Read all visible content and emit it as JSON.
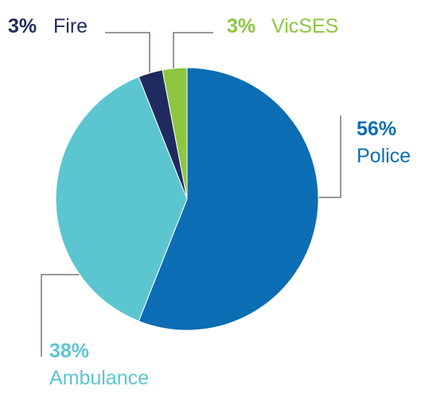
{
  "chart_data": {
    "type": "pie",
    "categories": [
      "Police",
      "Ambulance",
      "Fire",
      "VicSES"
    ],
    "values": [
      56,
      38,
      3,
      3
    ],
    "value_labels": [
      "56%",
      "38%",
      "3%",
      "3%"
    ],
    "colors": [
      "#0b6db3",
      "#5bc6d0",
      "#1f2b5e",
      "#8dc63f"
    ]
  }
}
